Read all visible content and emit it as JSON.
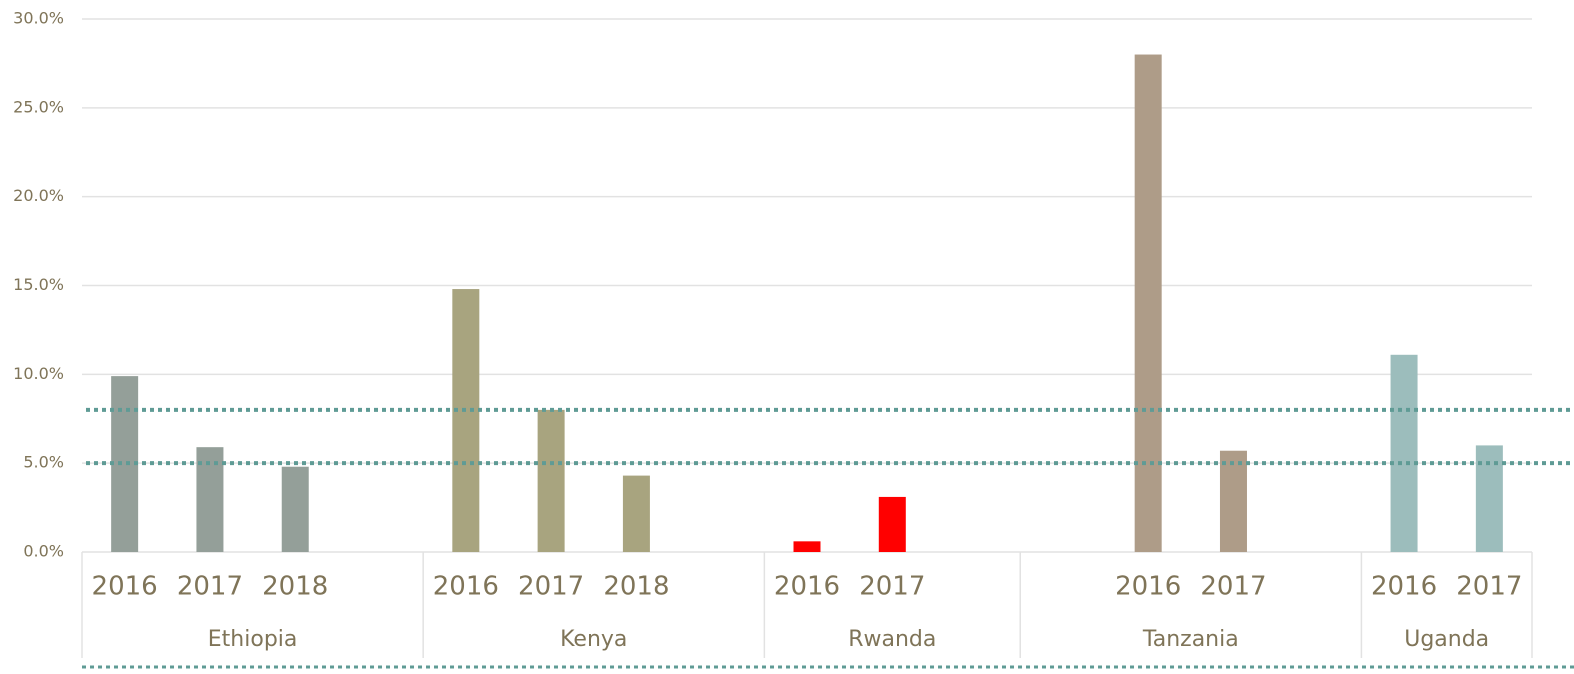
{
  "chart_data": {
    "type": "bar",
    "ylim": [
      0,
      30
    ],
    "yticks": [
      {
        "value": 0,
        "label": "0.0%"
      },
      {
        "value": 5,
        "label": "5.0%"
      },
      {
        "value": 10,
        "label": "10.0%"
      },
      {
        "value": 15,
        "label": "15.0%"
      },
      {
        "value": 20,
        "label": "20.0%"
      },
      {
        "value": 25,
        "label": "25.0%"
      },
      {
        "value": 30,
        "label": "30.0%"
      }
    ],
    "grid": true,
    "groups": [
      {
        "name": "Ethiopia",
        "color": "#949f99",
        "categories": [
          "2016",
          "2017",
          "2018",
          null
        ],
        "values": [
          9.9,
          5.9,
          4.8,
          null
        ]
      },
      {
        "name": "Kenya",
        "color": "#a8a47f",
        "categories": [
          "2016",
          "2017",
          "2018",
          null
        ],
        "values": [
          14.8,
          8.0,
          4.3,
          null
        ]
      },
      {
        "name": "Rwanda",
        "color": "#ff0000",
        "categories": [
          "2016",
          "2017",
          null
        ],
        "values": [
          0.6,
          3.1,
          null
        ]
      },
      {
        "name": "Tanzania",
        "color": "#ae9c88",
        "categories": [
          null,
          "2016",
          "2017",
          null
        ],
        "values": [
          null,
          28.0,
          5.7,
          null
        ]
      },
      {
        "name": "Uganda",
        "color": "#9cbdbc",
        "categories": [
          "2016",
          "2017"
        ],
        "values": [
          11.1,
          6.0
        ]
      }
    ],
    "reference_lines": [
      8,
      5
    ],
    "reference_color": "#5f9b95"
  }
}
